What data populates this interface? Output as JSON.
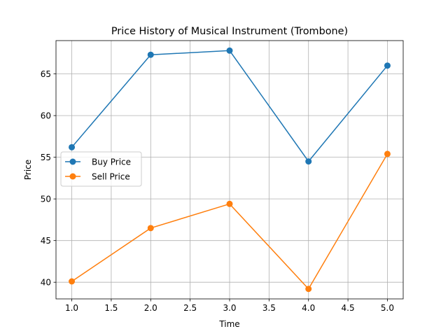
{
  "chart_data": {
    "type": "line",
    "title": "Price History of Musical Instrument (Trombone)",
    "xlabel": "Time",
    "ylabel": "Price",
    "x": [
      1,
      2,
      3,
      4,
      5
    ],
    "xlim": [
      0.8,
      5.2
    ],
    "ylim": [
      38,
      69
    ],
    "xticks": [
      "1.0",
      "1.5",
      "2.0",
      "2.5",
      "3.0",
      "3.5",
      "4.0",
      "4.5",
      "5.0"
    ],
    "yticks": [
      "40",
      "45",
      "50",
      "55",
      "60",
      "65"
    ],
    "grid": true,
    "legend_position": "center-left",
    "series": [
      {
        "name": "Buy Price",
        "color": "#1f77b4",
        "marker": "circle",
        "values": [
          56.2,
          67.3,
          67.8,
          54.5,
          66.0
        ]
      },
      {
        "name": "Sell Price",
        "color": "#ff7f0e",
        "marker": "circle",
        "values": [
          40.1,
          46.5,
          49.4,
          39.2,
          55.4
        ]
      }
    ]
  }
}
